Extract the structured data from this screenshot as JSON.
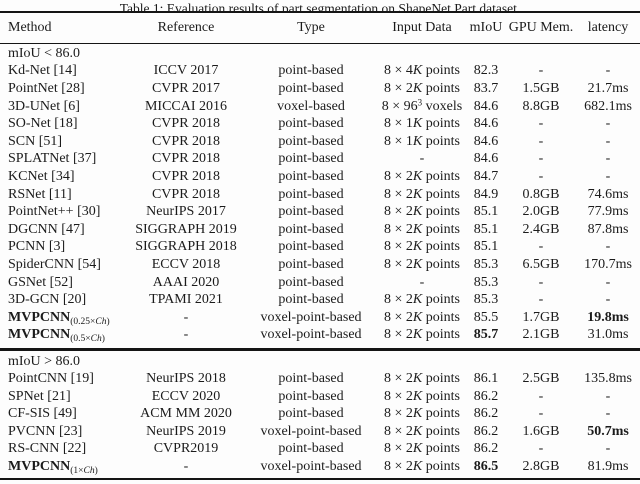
{
  "caption": "Table 1: Evaluation results of part segmentation on ShapeNet Part dataset.",
  "header": {
    "method": "Method",
    "reference": "Reference",
    "type": "Type",
    "input_data": "Input Data",
    "miou": "mIoU",
    "gpu_mem": "GPU Mem.",
    "latency": "latency"
  },
  "sections": [
    {
      "label": "mIoU < 86.0",
      "rows": [
        {
          "method": "Kd-Net [14]",
          "reference": "ICCV 2017",
          "type": "point-based",
          "input": {
            "pre": "8 × 4",
            "it": "K",
            "post": " points"
          },
          "miou": "82.3",
          "gpu": "-",
          "latency": "-"
        },
        {
          "method": "PointNet [28]",
          "reference": "CVPR 2017",
          "type": "point-based",
          "input": {
            "pre": "8 × 2",
            "it": "K",
            "post": " points"
          },
          "miou": "83.7",
          "gpu": "1.5GB",
          "latency": "21.7ms"
        },
        {
          "method": "3D-UNet [6]",
          "reference": "MICCAI 2016",
          "type": "voxel-based",
          "input": {
            "pre": "8 × 96",
            "sup": "3",
            "post": " voxels"
          },
          "miou": "84.6",
          "gpu": "8.8GB",
          "latency": "682.1ms"
        },
        {
          "method": "SO-Net [18]",
          "reference": "CVPR 2018",
          "type": "point-based",
          "input": {
            "pre": "8 × 1",
            "it": "K",
            "post": " points"
          },
          "miou": "84.6",
          "gpu": "-",
          "latency": "-"
        },
        {
          "method": "SCN [51]",
          "reference": "CVPR 2018",
          "type": "point-based",
          "input": {
            "pre": "8 × 1",
            "it": "K",
            "post": " points"
          },
          "miou": "84.6",
          "gpu": "-",
          "latency": "-"
        },
        {
          "method": "SPLATNet [37]",
          "reference": "CVPR 2018",
          "type": "point-based",
          "input": {
            "pre": "-"
          },
          "miou": "84.6",
          "gpu": "-",
          "latency": "-"
        },
        {
          "method": "KCNet [34]",
          "reference": "CVPR 2018",
          "type": "point-based",
          "input": {
            "pre": "8 × 2",
            "it": "K",
            "post": " points"
          },
          "miou": "84.7",
          "gpu": "-",
          "latency": "-"
        },
        {
          "method": "RSNet [11]",
          "reference": "CVPR 2018",
          "type": "point-based",
          "input": {
            "pre": "8 × 2",
            "it": "K",
            "post": " points"
          },
          "miou": "84.9",
          "gpu": "0.8GB",
          "latency": "74.6ms"
        },
        {
          "method": "PointNet++ [30]",
          "reference": "NeurIPS 2017",
          "type": "point-based",
          "input": {
            "pre": "8 × 2",
            "it": "K",
            "post": " points"
          },
          "miou": "85.1",
          "gpu": "2.0GB",
          "latency": "77.9ms"
        },
        {
          "method": "DGCNN [47]",
          "reference": "SIGGRAPH 2019",
          "type": "point-based",
          "input": {
            "pre": "8 × 2",
            "it": "K",
            "post": " points"
          },
          "miou": "85.1",
          "gpu": "2.4GB",
          "latency": "87.8ms"
        },
        {
          "method": "PCNN [3]",
          "reference": "SIGGRAPH 2018",
          "type": "point-based",
          "input": {
            "pre": "8 × 2",
            "it": "K",
            "post": " points"
          },
          "miou": "85.1",
          "gpu": "-",
          "latency": "-"
        },
        {
          "method": "SpiderCNN [54]",
          "reference": "ECCV 2018",
          "type": "point-based",
          "input": {
            "pre": "8 × 2",
            "it": "K",
            "post": " points"
          },
          "miou": "85.3",
          "gpu": "6.5GB",
          "latency": "170.7ms"
        },
        {
          "method": "GSNet [52]",
          "reference": "AAAI 2020",
          "type": "point-based",
          "input": {
            "pre": "-"
          },
          "miou": "85.3",
          "gpu": "-",
          "latency": "-"
        },
        {
          "method": "3D-GCN [20]",
          "reference": "TPAMI 2021",
          "type": "point-based",
          "input": {
            "pre": "8 × 2",
            "it": "K",
            "post": " points"
          },
          "miou": "85.3",
          "gpu": "-",
          "latency": "-"
        },
        {
          "method": "MVPCNN",
          "method_bold": true,
          "sub": {
            "pre": "(0.25×",
            "it": "Ch",
            "post": ")"
          },
          "reference": "-",
          "type": "voxel-point-based",
          "input": {
            "pre": "8 × 2",
            "it": "K",
            "post": " points"
          },
          "miou": "85.5",
          "gpu": "1.7GB",
          "latency": "19.8ms",
          "latency_bold": true
        },
        {
          "method": "MVPCNN",
          "method_bold": true,
          "sub": {
            "pre": "(0.5×",
            "it": "Ch",
            "post": ")"
          },
          "reference": "-",
          "type": "voxel-point-based",
          "input": {
            "pre": "8 × 2",
            "it": "K",
            "post": " points"
          },
          "miou": "85.7",
          "miou_bold": true,
          "gpu": "2.1GB",
          "latency": "31.0ms"
        }
      ]
    },
    {
      "label": "mIoU > 86.0",
      "rows": [
        {
          "method": "PointCNN [19]",
          "reference": "NeurIPS 2018",
          "type": "point-based",
          "input": {
            "pre": "8 × 2",
            "it": "K",
            "post": " points"
          },
          "miou": "86.1",
          "gpu": "2.5GB",
          "latency": "135.8ms"
        },
        {
          "method": "SPNet [21]",
          "reference": "ECCV 2020",
          "type": "point-based",
          "input": {
            "pre": "8 × 2",
            "it": "K",
            "post": " points"
          },
          "miou": "86.2",
          "gpu": "-",
          "latency": "-"
        },
        {
          "method": "CF-SIS [49]",
          "reference": "ACM MM 2020",
          "type": "point-based",
          "input": {
            "pre": "8 × 2",
            "it": "K",
            "post": " points"
          },
          "miou": "86.2",
          "gpu": "-",
          "latency": "-"
        },
        {
          "method": "PVCNN [23]",
          "reference": "NeurIPS 2019",
          "type": "voxel-point-based",
          "input": {
            "pre": "8 × 2",
            "it": "K",
            "post": " points"
          },
          "miou": "86.2",
          "gpu": "1.6GB",
          "latency": "50.7ms",
          "latency_bold": true
        },
        {
          "method": "RS-CNN [22]",
          "reference": "CVPR2019",
          "type": "point-based",
          "input": {
            "pre": "8 × 2",
            "it": "K",
            "post": " points"
          },
          "miou": "86.2",
          "gpu": "-",
          "latency": "-"
        },
        {
          "method": "MVPCNN",
          "method_bold": true,
          "sub": {
            "pre": "(1×",
            "it": "Ch",
            "post": ")"
          },
          "reference": "-",
          "type": "voxel-point-based",
          "input": {
            "pre": "8 × 2",
            "it": "K",
            "post": " points"
          },
          "miou": "86.5",
          "miou_bold": true,
          "gpu": "2.8GB",
          "latency": "81.9ms"
        }
      ]
    }
  ],
  "colors": {
    "text": "#1b1b1b",
    "rule": "#151515",
    "background": "#fdfdfd"
  }
}
